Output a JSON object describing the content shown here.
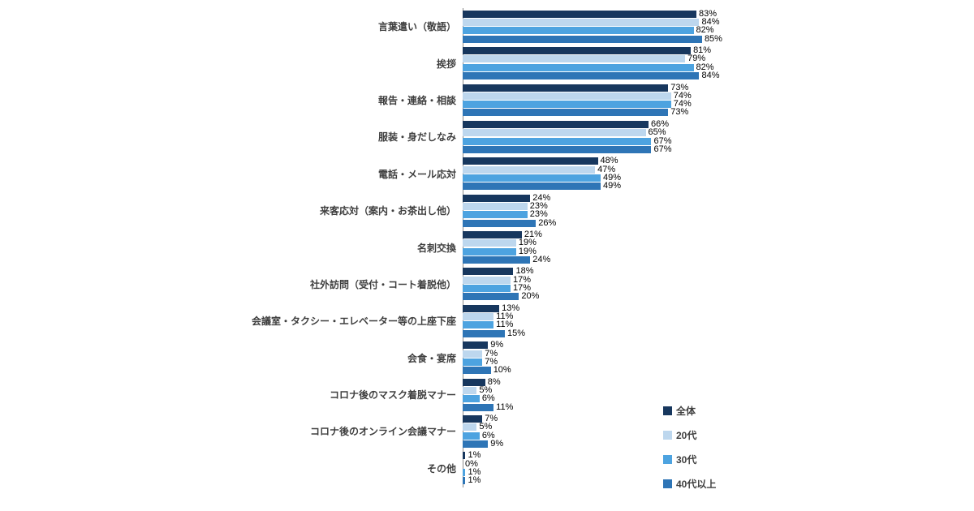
{
  "chart_data": {
    "type": "bar",
    "orientation": "horizontal",
    "title": "",
    "xlabel": "",
    "ylabel": "",
    "xlim": [
      0,
      100
    ],
    "grid": false,
    "legend_position": "right-bottom",
    "value_suffix": "%",
    "categories": [
      "言葉遣い（敬語）",
      "挨拶",
      "報告・連絡・相談",
      "服装・身だしなみ",
      "電話・メール応対",
      "来客応対（案内・お茶出し他）",
      "名刺交換",
      "社外訪問（受付・コート着脱他）",
      "会議室・タクシー・エレベーター等の上座下座",
      "会食・宴席",
      "コロナ後のマスク着脱マナー",
      "コロナ後のオンライン会議マナー",
      "その他"
    ],
    "series": [
      {
        "name": "全体",
        "color": "#17375E",
        "values": [
          83,
          81,
          73,
          66,
          48,
          24,
          21,
          18,
          13,
          9,
          8,
          7,
          1
        ]
      },
      {
        "name": "20代",
        "color": "#BDD7EE",
        "values": [
          84,
          79,
          74,
          65,
          47,
          23,
          19,
          17,
          11,
          7,
          5,
          5,
          0
        ]
      },
      {
        "name": "30代",
        "color": "#4DA3E0",
        "values": [
          82,
          82,
          74,
          67,
          49,
          23,
          19,
          17,
          11,
          7,
          6,
          6,
          1
        ]
      },
      {
        "name": "40代以上",
        "color": "#2E75B6",
        "values": [
          85,
          84,
          73,
          67,
          49,
          26,
          24,
          20,
          15,
          10,
          11,
          9,
          1
        ]
      }
    ]
  }
}
